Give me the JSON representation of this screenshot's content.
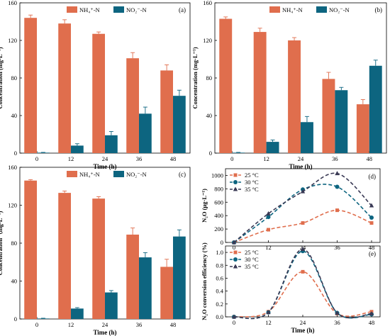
{
  "chart_data": [
    {
      "type": "bar",
      "panel_label": "(a)",
      "categories": [
        "0",
        "12",
        "24",
        "36",
        "48"
      ],
      "series": [
        {
          "name": "NH₄⁺-N",
          "values": [
            144,
            138,
            127,
            101,
            88
          ],
          "errors": [
            3,
            4,
            2,
            6,
            6
          ]
        },
        {
          "name": "NO₂⁻-N",
          "values": [
            0.5,
            8,
            19,
            42,
            61
          ],
          "errors": [
            0.3,
            2,
            4,
            7,
            6
          ]
        }
      ],
      "xlabel": "Time (h)",
      "ylabel": "Concentration (mg·L⁻¹)",
      "ylim": [
        0,
        160
      ],
      "yticks": [
        "0",
        "40",
        "80",
        "120",
        "160"
      ],
      "legend": "top-center",
      "colors": [
        "#E06E4D",
        "#0D6580"
      ]
    },
    {
      "type": "bar",
      "panel_label": "(b)",
      "categories": [
        "0",
        "12",
        "24",
        "36",
        "48"
      ],
      "series": [
        {
          "name": "NH₄⁺-N",
          "values": [
            143,
            129,
            120,
            79,
            52
          ],
          "errors": [
            2,
            4,
            3,
            7,
            5
          ]
        },
        {
          "name": "NO₂⁻-N",
          "values": [
            0.5,
            12,
            33,
            67,
            93
          ],
          "errors": [
            0.3,
            2,
            6,
            3,
            6
          ]
        }
      ],
      "xlabel": "Time (h)",
      "ylabel": "Concentration (mg·L⁻¹)",
      "ylim": [
        0,
        160
      ],
      "yticks": [
        "0",
        "40",
        "80",
        "120",
        "160"
      ],
      "legend": "top-center",
      "colors": [
        "#E06E4D",
        "#0D6580"
      ]
    },
    {
      "type": "bar",
      "panel_label": "(c)",
      "categories": [
        "0",
        "12",
        "24",
        "36",
        "48"
      ],
      "series": [
        {
          "name": "NH₄⁺-N",
          "values": [
            146,
            133,
            127,
            89,
            55
          ],
          "errors": [
            1,
            2,
            2,
            7,
            8
          ]
        },
        {
          "name": "NO₂⁻-N",
          "values": [
            0.5,
            11,
            28,
            65,
            87
          ],
          "errors": [
            0.3,
            1,
            2,
            5,
            7
          ]
        }
      ],
      "xlabel": "Time (h)",
      "ylabel": "Concentration（mg·L⁻¹)",
      "ylim": [
        0,
        160
      ],
      "yticks": [
        "0",
        "40",
        "80",
        "120",
        "160"
      ],
      "legend": "top-center",
      "colors": [
        "#E06E4D",
        "#0D6580"
      ]
    },
    {
      "type": "line",
      "panel_label": "(d)",
      "x": [
        0,
        12,
        24,
        36,
        48
      ],
      "series": [
        {
          "name": "25 °C",
          "values": [
            0,
            190,
            290,
            480,
            290
          ],
          "marker": "square",
          "color": "#E06E4D"
        },
        {
          "name": "30 °C",
          "values": [
            0,
            380,
            790,
            830,
            370
          ],
          "marker": "circle",
          "color": "#0D6580"
        },
        {
          "name": "35 °C",
          "values": [
            0,
            430,
            760,
            1030,
            550
          ],
          "marker": "triangle",
          "color": "#3A3A55"
        }
      ],
      "xlabel": "",
      "ylabel": "N₂O (μg·L⁻¹)",
      "ylim": [
        0,
        1100
      ],
      "yticks": [
        "0",
        "200",
        "400",
        "600",
        "800",
        "1000"
      ],
      "xticks": [
        "0",
        "12",
        "24",
        "36",
        "48"
      ],
      "legend": "top-left",
      "line_style": "dashed"
    },
    {
      "type": "line",
      "panel_label": "(e)",
      "x": [
        0,
        12,
        24,
        36,
        48
      ],
      "series": [
        {
          "name": "25 °C",
          "values": [
            0,
            0.08,
            0.7,
            0.05,
            0.08
          ],
          "marker": "square",
          "color": "#E06E4D"
        },
        {
          "name": "30 °C",
          "values": [
            0,
            0.07,
            1.02,
            0.06,
            0.04
          ],
          "marker": "circle",
          "color": "#0D6580"
        },
        {
          "name": "35 °C",
          "values": [
            0,
            0.07,
            1.05,
            0.06,
            0.05
          ],
          "marker": "triangle",
          "color": "#3A3A55"
        }
      ],
      "xlabel": "Time (h)",
      "ylabel": "N₂O conversion efficiency (%)",
      "ylim": [
        0,
        1.1
      ],
      "yticks": [
        "0.0",
        "0.2",
        "0.4",
        "0.6",
        "0.8",
        "1.0"
      ],
      "xticks": [
        "0",
        "12",
        "24",
        "36",
        "48"
      ],
      "legend": "top-left",
      "line_style": "dashed"
    }
  ]
}
